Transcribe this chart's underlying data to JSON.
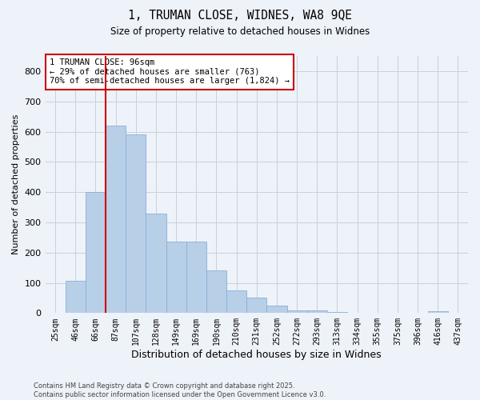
{
  "title": "1, TRUMAN CLOSE, WIDNES, WA8 9QE",
  "subtitle": "Size of property relative to detached houses in Widnes",
  "xlabel": "Distribution of detached houses by size in Widnes",
  "ylabel": "Number of detached properties",
  "categories": [
    "25sqm",
    "46sqm",
    "66sqm",
    "87sqm",
    "107sqm",
    "128sqm",
    "149sqm",
    "169sqm",
    "190sqm",
    "210sqm",
    "231sqm",
    "252sqm",
    "272sqm",
    "293sqm",
    "313sqm",
    "334sqm",
    "355sqm",
    "375sqm",
    "396sqm",
    "416sqm",
    "437sqm"
  ],
  "values": [
    2,
    107,
    400,
    620,
    590,
    330,
    235,
    235,
    140,
    75,
    50,
    25,
    10,
    10,
    3,
    0,
    0,
    0,
    0,
    5,
    0
  ],
  "bar_color": "#b8cfe8",
  "bar_edge_color": "#8aafd6",
  "property_line_index": 3,
  "property_line_color": "#cc0000",
  "annotation_text": "1 TRUMAN CLOSE: 96sqm\n← 29% of detached houses are smaller (763)\n70% of semi-detached houses are larger (1,824) →",
  "annotation_box_color": "#ffffff",
  "annotation_box_edge": "#cc0000",
  "ylim": [
    0,
    850
  ],
  "yticks": [
    0,
    100,
    200,
    300,
    400,
    500,
    600,
    700,
    800
  ],
  "footer1": "Contains HM Land Registry data © Crown copyright and database right 2025.",
  "footer2": "Contains public sector information licensed under the Open Government Licence v3.0.",
  "bg_color": "#eef2f9",
  "plot_bg_color": "#eef2f9",
  "grid_color": "#c8d0dc"
}
